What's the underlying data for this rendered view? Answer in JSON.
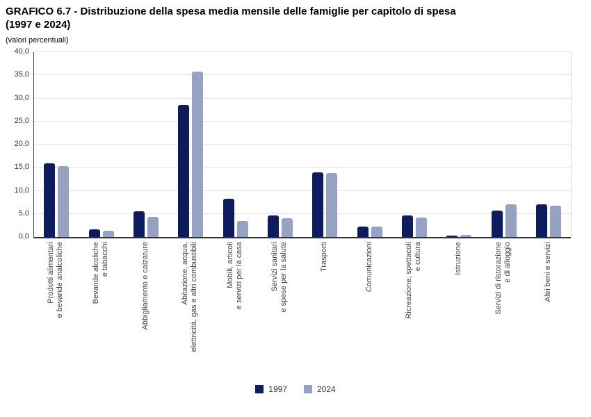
{
  "header": {
    "title_line1": "GRAFICO 6.7 - Distribuzione della spesa media mensile delle famiglie per capitolo di spesa",
    "title_line2": "(1997 e 2024)",
    "subtitle": "(valori percentuali)"
  },
  "chart_data": {
    "type": "bar",
    "title": "GRAFICO 6.7 - Distribuzione della spesa media mensile delle famiglie per capitolo di spesa (1997 e 2024)",
    "subtitle": "(valori percentuali)",
    "categories": [
      [
        "Prodotti alimentari",
        "e bevande analcoliche"
      ],
      [
        "Bevande alcoliche",
        "e tabacchi"
      ],
      [
        "Abbigliamento e calzature"
      ],
      [
        "Abitazione, acqua,",
        "elettricità, gas e altri combustibili"
      ],
      [
        "Mobili, articoli",
        "e servizi per la casa"
      ],
      [
        "Servizi sanitari",
        "e spese per la salute"
      ],
      [
        "Trasporti"
      ],
      [
        "Comunicazioni"
      ],
      [
        "Ricreazione, spettacoli",
        "e cultura"
      ],
      [
        "Istruzione"
      ],
      [
        "Servizi di ristorazione",
        "e di alloggio"
      ],
      [
        "Altri beni e servizi"
      ]
    ],
    "series": [
      {
        "name": "1997",
        "color": "#0d1c5e",
        "values": [
          16.0,
          1.6,
          5.6,
          28.6,
          8.3,
          4.6,
          14.0,
          2.3,
          4.7,
          0.3,
          5.7,
          7.1
        ]
      },
      {
        "name": "2024",
        "color": "#96a2c4",
        "values": [
          15.3,
          1.3,
          4.3,
          35.8,
          3.4,
          4.0,
          13.8,
          2.2,
          4.2,
          0.5,
          7.1,
          6.7
        ]
      }
    ],
    "xlabel": "",
    "ylabel": "",
    "ylim": [
      0,
      40
    ],
    "ytick_step": 5,
    "ytick_labels": [
      "0,0",
      "5,0",
      "10,0",
      "15,0",
      "20,0",
      "25,0",
      "30,0",
      "35,0",
      "40,0"
    ],
    "grid": true,
    "legend_position": "bottom"
  },
  "colors": {
    "grid": "#e3e3e3",
    "axis": "#333333",
    "text": "#404040"
  }
}
